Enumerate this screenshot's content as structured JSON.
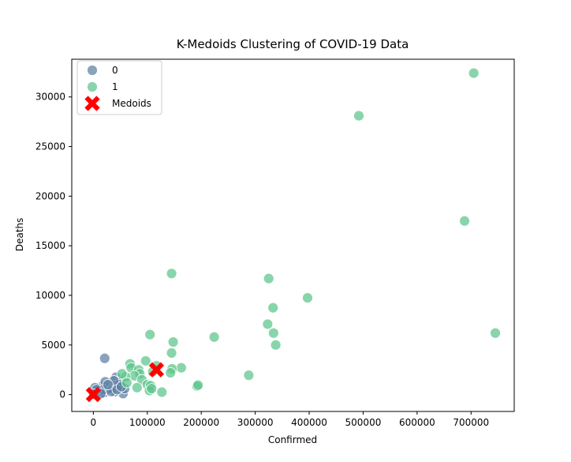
{
  "chart_data": {
    "type": "scatter",
    "title": "K-Medoids Clustering of COVID-19 Data",
    "xlabel": "Confirmed",
    "ylabel": "Deaths",
    "xlim": [
      -40000,
      780000
    ],
    "ylim": [
      -1700,
      33800
    ],
    "xticks": [
      0,
      100000,
      200000,
      300000,
      400000,
      500000,
      600000,
      700000
    ],
    "yticks": [
      0,
      5000,
      10000,
      15000,
      20000,
      25000,
      30000
    ],
    "legend_position": "upper-left",
    "series": [
      {
        "name": "0",
        "color": "#5b7fa3",
        "points": [
          [
            21000,
            3650
          ],
          [
            42000,
            1750
          ],
          [
            50000,
            1300
          ],
          [
            55000,
            100
          ],
          [
            58000,
            600
          ],
          [
            40000,
            300
          ],
          [
            35000,
            900
          ],
          [
            28000,
            700
          ],
          [
            15000,
            800
          ],
          [
            10000,
            600
          ],
          [
            5000,
            300
          ],
          [
            2000,
            100
          ],
          [
            8000,
            200
          ],
          [
            12000,
            400
          ],
          [
            20000,
            200
          ],
          [
            25000,
            500
          ],
          [
            30000,
            600
          ],
          [
            45000,
            700
          ],
          [
            48000,
            1000
          ],
          [
            38000,
            1400
          ],
          [
            22000,
            1300
          ],
          [
            18000,
            500
          ],
          [
            3000,
            700
          ],
          [
            6000,
            500
          ],
          [
            1000,
            50
          ],
          [
            14000,
            100
          ],
          [
            33000,
            300
          ],
          [
            27000,
            1000
          ],
          [
            44000,
            500
          ],
          [
            52000,
            800
          ]
        ]
      },
      {
        "name": "1",
        "color": "#5bc58a",
        "points": [
          [
            705000,
            32400
          ],
          [
            492000,
            28100
          ],
          [
            688000,
            17500
          ],
          [
            145000,
            12200
          ],
          [
            325000,
            11700
          ],
          [
            397000,
            9750
          ],
          [
            333000,
            8750
          ],
          [
            105000,
            6050
          ],
          [
            745000,
            6200
          ],
          [
            224000,
            5800
          ],
          [
            323000,
            7100
          ],
          [
            334000,
            6200
          ],
          [
            338000,
            5000
          ],
          [
            148000,
            5300
          ],
          [
            145000,
            4200
          ],
          [
            97000,
            3400
          ],
          [
            68000,
            3100
          ],
          [
            70000,
            2700
          ],
          [
            84000,
            2500
          ],
          [
            86000,
            2100
          ],
          [
            110000,
            2300
          ],
          [
            117000,
            2900
          ],
          [
            163000,
            2700
          ],
          [
            146000,
            2600
          ],
          [
            143000,
            2200
          ],
          [
            288000,
            1950
          ],
          [
            76000,
            1900
          ],
          [
            60000,
            1800
          ],
          [
            53000,
            2100
          ],
          [
            62000,
            1200
          ],
          [
            90000,
            1500
          ],
          [
            100000,
            1000
          ],
          [
            106000,
            900
          ],
          [
            104000,
            400
          ],
          [
            127000,
            250
          ],
          [
            192000,
            850
          ],
          [
            194000,
            950
          ],
          [
            81000,
            700
          ],
          [
            108000,
            600
          ]
        ]
      },
      {
        "name": "Medoids",
        "color": "#ff0000",
        "marker": "X",
        "points": [
          [
            117000,
            2500
          ],
          [
            0,
            0
          ]
        ]
      }
    ]
  }
}
